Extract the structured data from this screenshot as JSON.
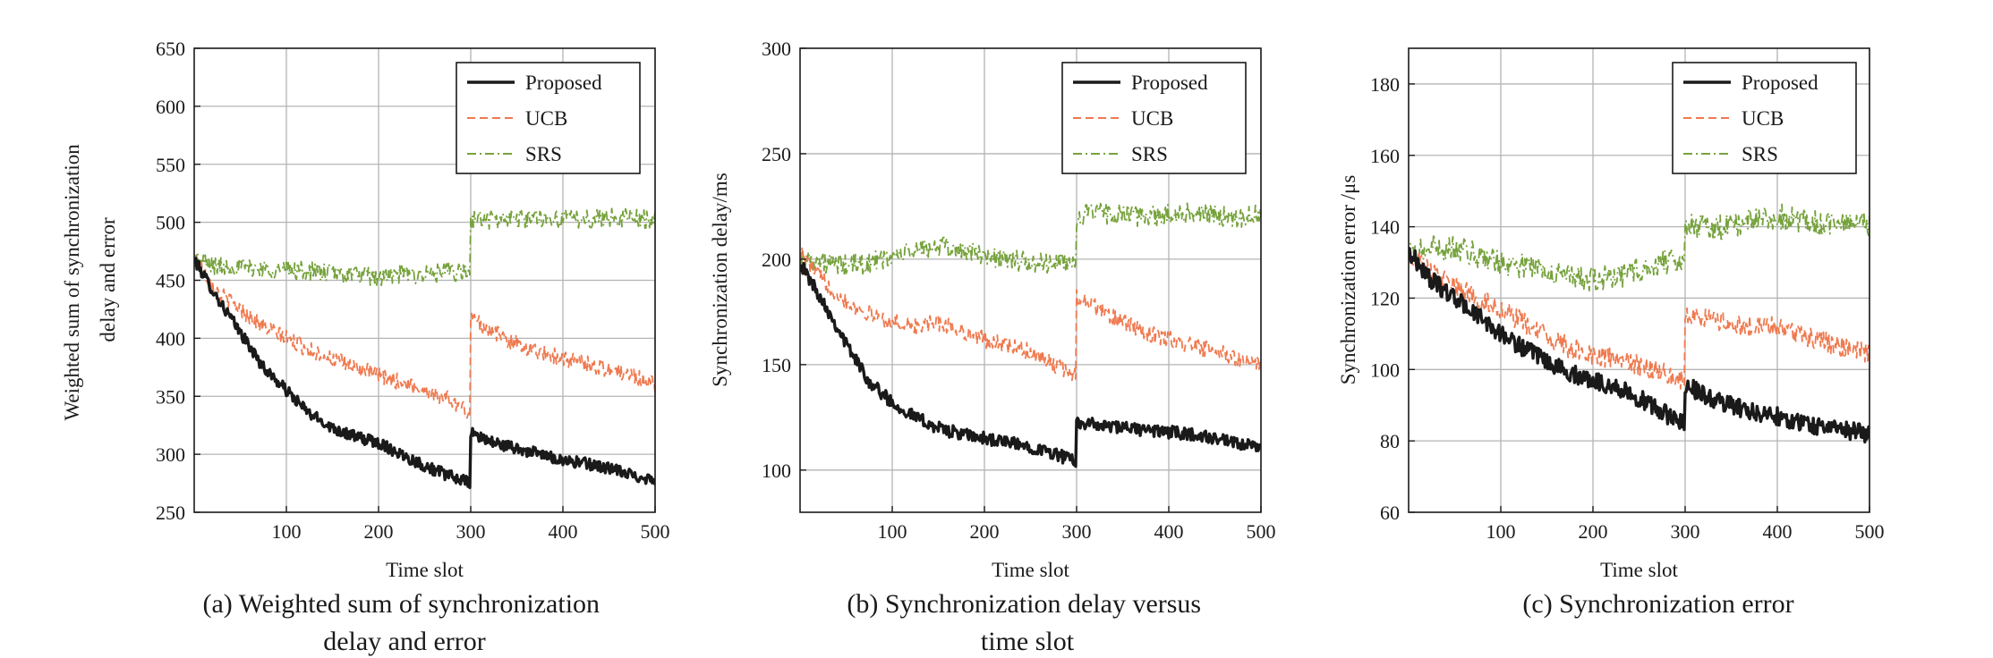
{
  "colors": {
    "proposed": "#1a1a1a",
    "ucb": "#ef7a50",
    "srs": "#76a23c",
    "grid": "#b4b4b4"
  },
  "chart_data": [
    {
      "type": "line",
      "caption_lines": [
        "(a) Weighted sum of synchronization",
        "delay and error"
      ],
      "xlabel": "Time slot",
      "ylabel_lines": [
        "Weighted sum of synchronization",
        "delay and error"
      ],
      "xlim": [
        0,
        500
      ],
      "ylim": [
        250,
        650
      ],
      "xticks": [
        100,
        200,
        300,
        400,
        500
      ],
      "yticks": [
        250,
        300,
        350,
        400,
        450,
        500,
        550,
        600,
        650
      ],
      "grid": true,
      "legend_position": "top-right",
      "series": [
        {
          "name": "Proposed",
          "style": "solid",
          "x": [
            0,
            25,
            50,
            75,
            100,
            125,
            150,
            175,
            200,
            225,
            250,
            275,
            299,
            300,
            325,
            350,
            375,
            400,
            425,
            450,
            475,
            500
          ],
          "values": [
            468,
            435,
            405,
            375,
            355,
            335,
            323,
            315,
            310,
            300,
            290,
            282,
            275,
            318,
            310,
            305,
            300,
            295,
            292,
            288,
            282,
            278
          ],
          "noise": 5
        },
        {
          "name": "UCB",
          "style": "dashed",
          "x": [
            0,
            25,
            50,
            75,
            100,
            125,
            150,
            175,
            200,
            225,
            250,
            275,
            299,
            300,
            325,
            350,
            375,
            400,
            425,
            450,
            475,
            500
          ],
          "values": [
            470,
            440,
            425,
            410,
            400,
            390,
            382,
            375,
            368,
            362,
            355,
            348,
            335,
            418,
            405,
            395,
            388,
            383,
            378,
            373,
            368,
            360
          ],
          "noise": 7
        },
        {
          "name": "SRS",
          "style": "dashdot",
          "x": [
            0,
            25,
            50,
            75,
            100,
            125,
            150,
            175,
            200,
            225,
            250,
            275,
            299,
            300,
            325,
            350,
            375,
            400,
            425,
            450,
            475,
            500
          ],
          "values": [
            468,
            462,
            462,
            460,
            459,
            458,
            456,
            455,
            452,
            455,
            455,
            457,
            456,
            503,
            502,
            503,
            504,
            503,
            503,
            504,
            504,
            502
          ],
          "noise": 8
        }
      ]
    },
    {
      "type": "line",
      "caption_lines": [
        "(b) Synchronization delay versus",
        "time slot"
      ],
      "xlabel": "Time slot",
      "ylabel_lines": [
        "Synchronization delay/ms"
      ],
      "xlim": [
        0,
        500
      ],
      "ylim": [
        80,
        300
      ],
      "xticks": [
        100,
        200,
        300,
        400,
        500
      ],
      "yticks": [
        100,
        150,
        200,
        250,
        300
      ],
      "grid": true,
      "legend_position": "top-right",
      "series": [
        {
          "name": "Proposed",
          "style": "solid",
          "x": [
            0,
            25,
            50,
            75,
            100,
            125,
            150,
            175,
            200,
            225,
            250,
            275,
            299,
            300,
            325,
            350,
            375,
            400,
            425,
            450,
            475,
            500
          ],
          "values": [
            198,
            180,
            160,
            142,
            132,
            125,
            120,
            117,
            115,
            113,
            111,
            108,
            104,
            123,
            121,
            120,
            119,
            118,
            117,
            115,
            112,
            111
          ],
          "noise": 3
        },
        {
          "name": "UCB",
          "style": "dashed",
          "x": [
            0,
            25,
            50,
            75,
            100,
            125,
            150,
            175,
            200,
            225,
            250,
            275,
            299,
            300,
            325,
            350,
            375,
            400,
            425,
            450,
            475,
            500
          ],
          "values": [
            203,
            190,
            180,
            174,
            170,
            168,
            170,
            166,
            162,
            159,
            156,
            150,
            145,
            183,
            176,
            170,
            165,
            162,
            159,
            156,
            153,
            149
          ],
          "noise": 4
        },
        {
          "name": "SRS",
          "style": "dashdot",
          "x": [
            0,
            25,
            50,
            75,
            100,
            125,
            150,
            175,
            200,
            225,
            250,
            275,
            299,
            300,
            325,
            350,
            375,
            400,
            425,
            450,
            475,
            500
          ],
          "values": [
            201,
            198,
            197,
            198,
            201,
            204,
            206,
            204,
            202,
            200,
            198,
            198,
            199,
            220,
            222,
            221,
            220,
            221,
            222,
            221,
            220,
            221
          ],
          "noise": 5
        }
      ]
    },
    {
      "type": "line",
      "caption_lines": [
        "(c) Synchronization error"
      ],
      "xlabel": "Time slot",
      "ylabel_lines": [
        "Synchronization error /μs"
      ],
      "xlim": [
        0,
        500
      ],
      "ylim": [
        60,
        190
      ],
      "xticks": [
        100,
        200,
        300,
        400,
        500
      ],
      "yticks": [
        60,
        80,
        100,
        120,
        140,
        160,
        180
      ],
      "grid": true,
      "legend_position": "top-right",
      "series": [
        {
          "name": "Proposed",
          "style": "solid",
          "x": [
            0,
            25,
            50,
            75,
            100,
            125,
            150,
            175,
            200,
            225,
            250,
            275,
            299,
            300,
            325,
            350,
            375,
            400,
            425,
            450,
            475,
            500
          ],
          "values": [
            133,
            125,
            120,
            115,
            110,
            106,
            102,
            99,
            97,
            95,
            92,
            88,
            85,
            96,
            92,
            90,
            88,
            87,
            85,
            84,
            83,
            82
          ],
          "noise": 2.5
        },
        {
          "name": "UCB",
          "style": "dashed",
          "x": [
            0,
            25,
            50,
            75,
            100,
            125,
            150,
            175,
            200,
            225,
            250,
            275,
            299,
            300,
            325,
            350,
            375,
            400,
            425,
            450,
            475,
            500
          ],
          "values": [
            133,
            127,
            123,
            120,
            117,
            113,
            109,
            106,
            104,
            103,
            101,
            99,
            97,
            116,
            114,
            113,
            112,
            112,
            110,
            108,
            106,
            104
          ],
          "noise": 3
        },
        {
          "name": "SRS",
          "style": "dashdot",
          "x": [
            0,
            25,
            50,
            75,
            100,
            125,
            150,
            175,
            200,
            225,
            250,
            275,
            299,
            300,
            325,
            350,
            375,
            400,
            425,
            450,
            475,
            500
          ],
          "values": [
            132,
            134,
            134,
            132,
            130,
            129,
            128,
            126,
            125,
            126,
            128,
            130,
            131,
            141,
            140,
            140,
            142,
            143,
            142,
            141,
            141,
            141
          ],
          "noise": 3.5
        }
      ]
    }
  ]
}
